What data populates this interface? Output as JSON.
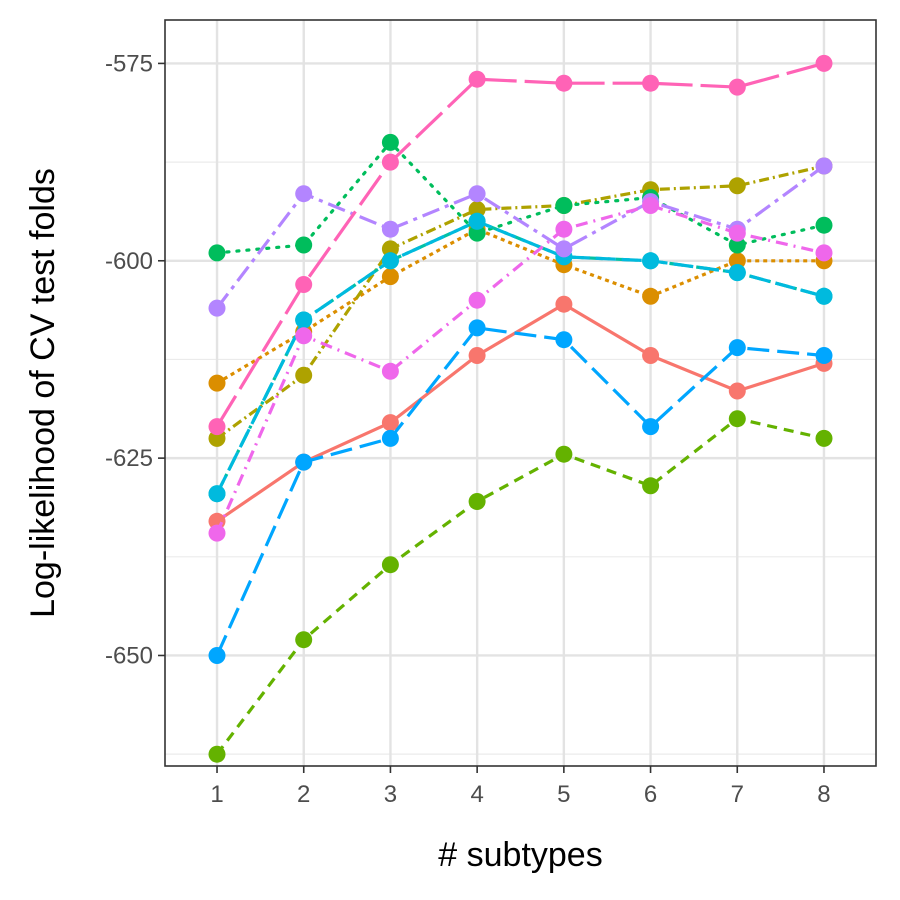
{
  "chart_data": {
    "type": "line",
    "xlabel": "# subtypes",
    "ylabel": "Log-likelihood of CV test folds",
    "x": [
      1,
      2,
      3,
      4,
      5,
      6,
      7,
      8
    ],
    "xlim": [
      0.4,
      8.6
    ],
    "ylim": [
      -664,
      -569.5
    ],
    "y_ticks": [
      -650,
      -625,
      -600,
      -575
    ],
    "y_tick_labels": [
      "-650",
      "-625",
      "-600",
      "-575"
    ],
    "x_tick_labels": [
      "1",
      "2",
      "3",
      "4",
      "5",
      "6",
      "7",
      "8"
    ],
    "grid": true,
    "legend": "none",
    "series": [
      {
        "color": "#F8766D",
        "dash": "solid",
        "values": [
          -633,
          -625.5,
          -620.5,
          -612,
          -605.5,
          -612,
          -616.5,
          -613
        ]
      },
      {
        "color": "#DB8E00",
        "dash": "4,4",
        "values": [
          -615.5,
          -609,
          -602,
          -596,
          -600.5,
          -604.5,
          -600,
          -600
        ]
      },
      {
        "color": "#AEA200",
        "dash": "10,4,2,4",
        "values": [
          -622.5,
          -614.5,
          -598.5,
          -593.5,
          -593,
          -591,
          -590.5,
          -588
        ]
      },
      {
        "color": "#64B200",
        "dash": "10,7",
        "values": [
          -662.5,
          -648,
          -638.5,
          -630.5,
          -624.5,
          -628.5,
          -620,
          -622.5
        ]
      },
      {
        "color": "#00BD5C",
        "dash": "2,8",
        "values": [
          -599,
          -598,
          -585,
          -596.5,
          -593,
          -592,
          -598,
          -595.5
        ]
      },
      {
        "color": "#00C1A7",
        "dash": "14,5,3,5",
        "values": [
          -629.5,
          -607.5,
          -600,
          -595,
          -599.5,
          -600,
          -601.5,
          -604.5
        ]
      },
      {
        "color": "#00BADE",
        "dash": "20,6",
        "values": [
          -629.5,
          -607.5,
          -600,
          -595,
          -599.5,
          -600,
          -601.5,
          -604.5
        ]
      },
      {
        "color": "#00A6FF",
        "dash": "22,8",
        "values": [
          -650,
          -625.5,
          -622.5,
          -608.5,
          -610,
          -621,
          -611,
          -612
        ]
      },
      {
        "color": "#B385FF",
        "dash": "18,6,4,6",
        "values": [
          -606,
          -591.5,
          -596,
          -591.5,
          -598.5,
          -592.5,
          -596,
          -588
        ]
      },
      {
        "color": "#EF67EB",
        "dash": "12,6,2,6",
        "values": [
          -634.5,
          -609.5,
          -614,
          -605,
          -596,
          -593,
          -596.5,
          -599
        ]
      },
      {
        "color": "#FF63B6",
        "dash": "36,8",
        "values": [
          -621,
          -603,
          -587.5,
          -577,
          -577.5,
          -577.5,
          -578,
          -575
        ]
      }
    ]
  }
}
